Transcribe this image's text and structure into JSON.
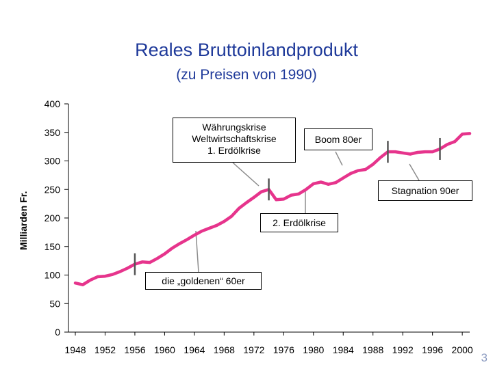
{
  "page_number": "3",
  "chart_data": {
    "type": "line",
    "title": "Reales Bruttoinlandprodukt",
    "subtitle": "(zu Preisen von 1990)",
    "ylabel": "Milliarden Fr.",
    "xlabel": "",
    "ylim": [
      0,
      400
    ],
    "xlim": [
      1948,
      2001
    ],
    "y_ticks": [
      0,
      50,
      100,
      150,
      200,
      250,
      300,
      350,
      400
    ],
    "x_ticks": [
      1948,
      1952,
      1956,
      1960,
      1964,
      1968,
      1972,
      1976,
      1980,
      1984,
      1988,
      1992,
      1996,
      2000
    ],
    "line_color": "#e6348c",
    "series": [
      {
        "x": [
          1948,
          1949,
          1950,
          1951,
          1952,
          1953,
          1954,
          1955,
          1956,
          1957,
          1958,
          1959,
          1960,
          1961,
          1962,
          1963,
          1964,
          1965,
          1966,
          1967,
          1968,
          1969,
          1970,
          1971,
          1972,
          1973,
          1974,
          1975,
          1976,
          1977,
          1978,
          1979,
          1980,
          1981,
          1982,
          1983,
          1984,
          1985,
          1986,
          1987,
          1988,
          1989,
          1990,
          1991,
          1992,
          1993,
          1994,
          1995,
          1996,
          1997,
          1998,
          1999,
          2000,
          2001
        ],
        "y": [
          86,
          83,
          91,
          97,
          98,
          101,
          106,
          112,
          119,
          123,
          122,
          129,
          137,
          147,
          155,
          162,
          170,
          177,
          182,
          187,
          194,
          203,
          217,
          227,
          236,
          246,
          250,
          232,
          233,
          240,
          242,
          250,
          260,
          263,
          259,
          262,
          270,
          278,
          283,
          285,
          294,
          306,
          316,
          316,
          314,
          312,
          315,
          316,
          316,
          321,
          329,
          334,
          347,
          348
        ]
      }
    ],
    "annotations": [
      {
        "label": "die „goldenen“ 60er",
        "x": 1962
      },
      {
        "label": "Währungskrise\nWeltwirtschaftskrise\n1. Erdölkrise",
        "x": 1974
      },
      {
        "label": "2. Erdölkrise",
        "x": 1980
      },
      {
        "label": "Boom 80er",
        "x": 1986
      },
      {
        "label": "Stagnation 90er",
        "x": 1996
      }
    ]
  }
}
